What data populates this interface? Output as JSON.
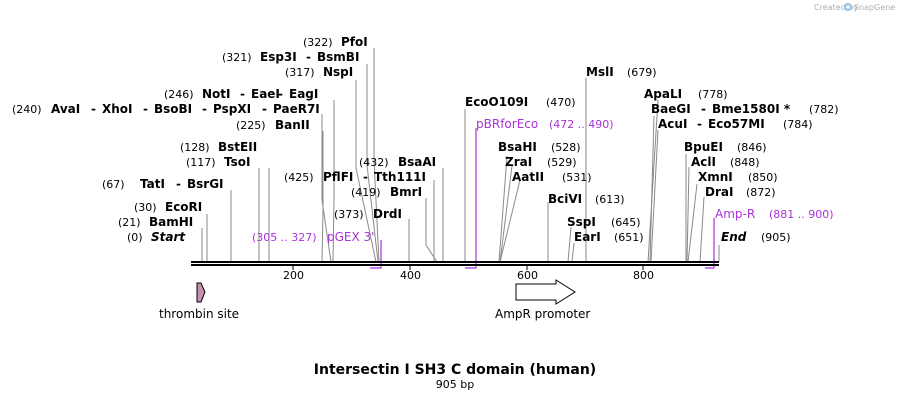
{
  "credit": "Created by",
  "brand": "SnapGene",
  "title": "Intersectin I SH3 C domain (human)",
  "subtitle": "905 bp",
  "sequence_length": 905,
  "ruler": [
    {
      "value": 200,
      "label": "200"
    },
    {
      "value": 400,
      "label": "400"
    },
    {
      "value": 600,
      "label": "600"
    },
    {
      "value": 800,
      "label": "800"
    }
  ],
  "enzymes": [
    {
      "name": "PfoI",
      "pos": 322,
      "label": "(322)"
    },
    {
      "name": "Esp3I",
      "pos": 321,
      "label": "(321)"
    },
    {
      "name": "BsmBI",
      "pos": 321,
      "label": ""
    },
    {
      "name": "NspI",
      "pos": 317,
      "label": "(317)"
    },
    {
      "name": "NotI",
      "pos": 246,
      "label": "(246)"
    },
    {
      "name": "EaeI",
      "pos": 246,
      "label": ""
    },
    {
      "name": "EagI",
      "pos": 246,
      "label": ""
    },
    {
      "name": "AvaI",
      "pos": 240,
      "label": "(240)"
    },
    {
      "name": "XhoI",
      "pos": 240,
      "label": ""
    },
    {
      "name": "BsoBI",
      "pos": 240,
      "label": ""
    },
    {
      "name": "PspXI",
      "pos": 240,
      "label": ""
    },
    {
      "name": "PaeR7I",
      "pos": 240,
      "label": ""
    },
    {
      "name": "BanII",
      "pos": 225,
      "label": "(225)"
    },
    {
      "name": "BstEII",
      "pos": 128,
      "label": "(128)"
    },
    {
      "name": "TsoI",
      "pos": 117,
      "label": "(117)"
    },
    {
      "name": "PflFI",
      "pos": 425,
      "label": "(425)"
    },
    {
      "name": "Tth111I",
      "pos": 425,
      "label": ""
    },
    {
      "name": "BsaAI",
      "pos": 432,
      "label": "(432)"
    },
    {
      "name": "TatI",
      "pos": 67,
      "label": "(67)"
    },
    {
      "name": "BsrGI",
      "pos": 67,
      "label": ""
    },
    {
      "name": "BmrI",
      "pos": 419,
      "label": "(419)"
    },
    {
      "name": "EcoRI",
      "pos": 30,
      "label": "(30)"
    },
    {
      "name": "DrdI",
      "pos": 373,
      "label": "(373)"
    },
    {
      "name": "BamHI",
      "pos": 21,
      "label": "(21)"
    },
    {
      "name": "Start",
      "pos": 0,
      "label": "(0)"
    },
    {
      "name": "EcoO109I",
      "pos": 470,
      "label": "(470)"
    },
    {
      "name": "BsaHI",
      "pos": 528,
      "label": "(528)"
    },
    {
      "name": "ZraI",
      "pos": 529,
      "label": "(529)"
    },
    {
      "name": "AatII",
      "pos": 531,
      "label": "(531)"
    },
    {
      "name": "BciVI",
      "pos": 613,
      "label": "(613)"
    },
    {
      "name": "SspI",
      "pos": 645,
      "label": "(645)"
    },
    {
      "name": "EarI",
      "pos": 651,
      "label": "(651)"
    },
    {
      "name": "MslI",
      "pos": 679,
      "label": "(679)"
    },
    {
      "name": "ApaLI",
      "pos": 778,
      "label": "(778)"
    },
    {
      "name": "BaeGI",
      "pos": 782,
      "label": ""
    },
    {
      "name": "Bme1580I *",
      "pos": 782,
      "label": "(782)"
    },
    {
      "name": "AcuI",
      "pos": 784,
      "label": ""
    },
    {
      "name": "Eco57MI",
      "pos": 784,
      "label": "(784)"
    },
    {
      "name": "BpuEI",
      "pos": 846,
      "label": "(846)"
    },
    {
      "name": "AclI",
      "pos": 848,
      "label": "(848)"
    },
    {
      "name": "XmnI",
      "pos": 850,
      "label": "(850)"
    },
    {
      "name": "DraI",
      "pos": 872,
      "label": "(872)"
    },
    {
      "name": "End",
      "pos": 905,
      "label": "(905)"
    }
  ],
  "primers": [
    {
      "name": "pBRforEco",
      "range": "(472 .. 490)"
    },
    {
      "name": "pGEX 3'",
      "range": "(305 .. 327)"
    },
    {
      "name": "Amp-R",
      "range": "(881 .. 900)"
    }
  ],
  "features": [
    {
      "name": "thrombin site"
    },
    {
      "name": "AmpR promoter"
    }
  ],
  "colors": {
    "primer": "#a833d6",
    "thrombin": "#c78fb0",
    "promoter": "#ffffff",
    "backbone": "#000000"
  }
}
